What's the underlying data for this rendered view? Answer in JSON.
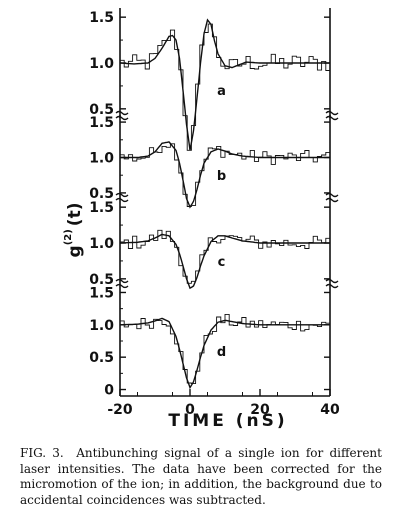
{
  "chart_data": {
    "type": "line",
    "xlabel": "TIME (nS)",
    "ylabel": "g(2)(t)",
    "ylabel_main": "g",
    "ylabel_sup": "(2)",
    "ylabel_arg": "(t)",
    "xlim": [
      -20,
      40
    ],
    "x_ticks": [
      -20,
      0,
      20,
      40
    ],
    "x_tick_labels": [
      "-20",
      "0",
      "20",
      "40"
    ],
    "panels": [
      {
        "label": "a",
        "ylim": [
          0.4,
          1.6
        ],
        "y_ticks": [
          0.5,
          1.0,
          1.5
        ],
        "y_tick_labels": [
          "0.5",
          "1.0",
          "1.5"
        ],
        "theory": {
          "x": [
            -20,
            -16,
            -12,
            -10,
            -8,
            -6,
            -5,
            -4,
            -3,
            -2,
            -1,
            0,
            1,
            2,
            3,
            4,
            5,
            6,
            7,
            8,
            10,
            12,
            14,
            16,
            20,
            25,
            30,
            35,
            40
          ],
          "y": [
            1.0,
            0.99,
            1.0,
            1.05,
            1.16,
            1.29,
            1.3,
            1.25,
            1.05,
            0.7,
            0.33,
            0.05,
            0.26,
            0.62,
            1.0,
            1.32,
            1.47,
            1.42,
            1.24,
            1.1,
            0.97,
            0.95,
            0.98,
            1.01,
            1.0,
            1.0,
            1.0,
            1.0,
            1.0
          ]
        }
      },
      {
        "label": "b",
        "ylim": [
          0.4,
          1.6
        ],
        "y_ticks": [
          0.5,
          1.0,
          1.5
        ],
        "y_tick_labels": [
          "0.5",
          "1.0",
          "1.5"
        ],
        "theory": {
          "x": [
            -20,
            -15,
            -12,
            -10,
            -8,
            -6,
            -4,
            -3,
            -2,
            -1,
            0,
            1,
            2,
            3,
            4,
            6,
            8,
            10,
            12,
            15,
            20,
            25,
            30,
            40
          ],
          "y": [
            1.0,
            1.0,
            1.02,
            1.08,
            1.2,
            1.22,
            1.1,
            0.92,
            0.68,
            0.42,
            0.3,
            0.38,
            0.55,
            0.75,
            0.92,
            1.08,
            1.12,
            1.09,
            1.05,
            1.02,
            1.0,
            1.0,
            1.0,
            1.0
          ]
        }
      },
      {
        "label": "c",
        "ylim": [
          0.4,
          1.6
        ],
        "y_ticks": [
          0.5,
          1.0,
          1.5
        ],
        "y_tick_labels": [
          "0.5",
          "1.0",
          "1.5"
        ],
        "theory": {
          "x": [
            -20,
            -15,
            -12,
            -10,
            -8,
            -6,
            -4,
            -3,
            -2,
            -1,
            0,
            1,
            2,
            3,
            4,
            6,
            8,
            10,
            12,
            15,
            20,
            25,
            30,
            40
          ],
          "y": [
            1.0,
            1.01,
            1.03,
            1.07,
            1.12,
            1.1,
            0.98,
            0.85,
            0.68,
            0.5,
            0.37,
            0.4,
            0.52,
            0.68,
            0.82,
            1.02,
            1.1,
            1.1,
            1.07,
            1.03,
            1.0,
            1.0,
            1.0,
            1.0
          ]
        }
      },
      {
        "label": "d",
        "ylim": [
          -0.1,
          1.6
        ],
        "y_ticks": [
          0,
          0.5,
          1.0,
          1.5
        ],
        "y_tick_labels": [
          "0",
          "0.5",
          "1.0",
          "1.5"
        ],
        "theory": {
          "x": [
            -20,
            -15,
            -12,
            -10,
            -8,
            -6,
            -4,
            -3,
            -2,
            -1,
            0,
            1,
            2,
            3,
            4,
            6,
            8,
            10,
            12,
            15,
            20,
            25,
            30,
            40
          ],
          "y": [
            1.0,
            1.01,
            1.03,
            1.06,
            1.1,
            1.05,
            0.82,
            0.62,
            0.4,
            0.18,
            0.03,
            0.12,
            0.3,
            0.5,
            0.68,
            0.92,
            1.04,
            1.07,
            1.05,
            1.02,
            1.0,
            1.0,
            1.0,
            1.0
          ]
        }
      }
    ]
  },
  "caption": {
    "figure_label": "FIG. 3.",
    "text": "Antibunching signal of a single ion for different laser intensities. The data have been corrected for the micromotion of the ion; in addition, the background due to accidental coincidences was subtracted."
  }
}
